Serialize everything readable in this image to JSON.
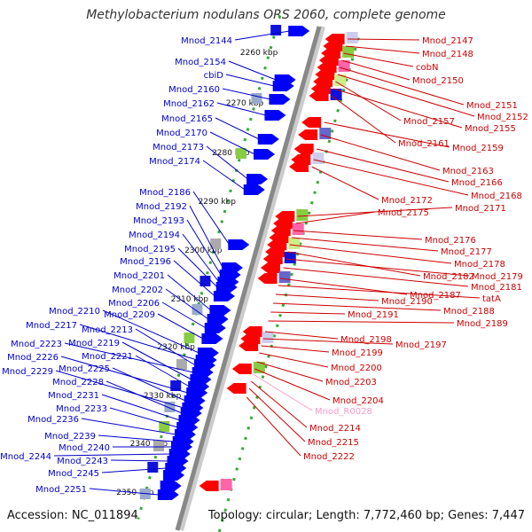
{
  "title": "Methylobacterium nodulans ORS 2060, complete genome",
  "accession": "Accession: NC_011894",
  "topology": "Topology: circular; Length: 7,772,460 bp; Genes: 7,447",
  "colors": {
    "left_labels": "#0000cc",
    "right_labels": "#cc0000",
    "rna_label": "#ff99cc",
    "forward_gene": "#0000ff",
    "reverse_gene": "#ff0000",
    "backbone": "#888888",
    "tick": "#33aa33"
  },
  "scale": {
    "unit": "kbp",
    "ticks": [
      {
        "label": "2260 kbp"
      },
      {
        "label": "2270 kbp"
      },
      {
        "label": "2280 kbp"
      },
      {
        "label": "2290 kbp"
      },
      {
        "label": "2300 kbp"
      },
      {
        "label": "2310 kbp"
      },
      {
        "label": "2320 kbp"
      },
      {
        "label": "2330 kbp"
      },
      {
        "label": "2340 kbp"
      },
      {
        "label": "2350 kbp"
      }
    ]
  },
  "left_genes": [
    "Mnod_2144",
    "Mnod_2154",
    "cbiD",
    "Mnod_2160",
    "Mnod_2162",
    "Mnod_2165",
    "Mnod_2170",
    "Mnod_2173",
    "Mnod_2174",
    "Mnod_2186",
    "Mnod_2192",
    "Mnod_2193",
    "Mnod_2194",
    "Mnod_2195",
    "Mnod_2196",
    "Mnod_2201",
    "Mnod_2202",
    "Mnod_2206",
    "Mnod_2209",
    "Mnod_2210",
    "Mnod_2217",
    "Mnod_2213",
    "Mnod_2223",
    "Mnod_2219",
    "Mnod_2221",
    "Mnod_2226",
    "Mnod_2225",
    "Mnod_2229",
    "Mnod_2228",
    "Mnod_2231",
    "Mnod_2233",
    "Mnod_2236",
    "Mnod_2239",
    "Mnod_2240",
    "Mnod_2244",
    "Mnod_2243",
    "Mnod_2245",
    "Mnod_2251"
  ],
  "right_genes": [
    "Mnod_2147",
    "Mnod_2148",
    "cobN",
    "Mnod_2150",
    "Mnod_2151",
    "Mnod_2152",
    "Mnod_2157",
    "Mnod_2155",
    "Mnod_2161",
    "Mnod_2159",
    "Mnod_2163",
    "Mnod_2166",
    "Mnod_2168",
    "Mnod_2172",
    "Mnod_2171",
    "Mnod_2175",
    "Mnod_2176",
    "Mnod_2177",
    "Mnod_2178",
    "Mnod_2182",
    "Mnod_2179",
    "Mnod_2181",
    "Mnod_2187",
    "tatA",
    "Mnod_2190",
    "Mnod_2188",
    "Mnod_2191",
    "Mnod_2189",
    "Mnod_2198",
    "Mnod_2197",
    "Mnod_2199",
    "Mnod_2200",
    "Mnod_2203",
    "Mnod_2204",
    "Mnod_R0028",
    "Mnod_2214",
    "Mnod_2215",
    "Mnod_2222"
  ]
}
